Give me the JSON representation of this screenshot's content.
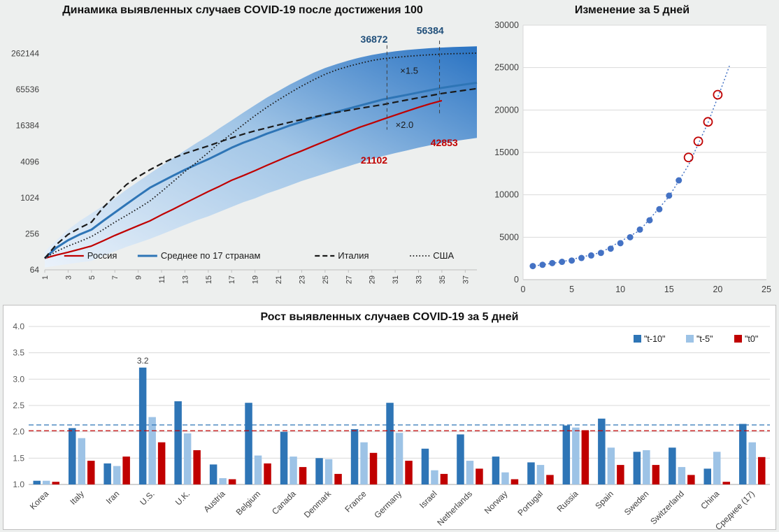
{
  "chart_data": [
    {
      "type": "line",
      "title": "Динамика выявленных случаев COVID-19 после достижения 100",
      "y_scale": "log",
      "ylim": [
        64,
        700000
      ],
      "y_ticks": [
        64,
        256,
        1024,
        4096,
        16384,
        65536,
        262144
      ],
      "xlim": [
        1,
        38
      ],
      "x_ticks": [
        1,
        3,
        5,
        7,
        9,
        11,
        13,
        15,
        17,
        19,
        21,
        23,
        25,
        27,
        29,
        31,
        33,
        35,
        37
      ],
      "series": [
        {
          "id": "russia",
          "name": "Россия",
          "color": "#C00000",
          "style": "solid",
          "width": 2.2,
          "x_start": 1,
          "values": [
            100,
            113,
            126,
            142,
            160,
            195,
            240,
            290,
            350,
            420,
            530,
            660,
            830,
            1040,
            1300,
            1600,
            2000,
            2400,
            2900,
            3550,
            4300,
            5200,
            6200,
            7500,
            9000,
            10800,
            13000,
            15500,
            18000,
            21102,
            24500,
            28500,
            33000,
            38000,
            42853
          ]
        },
        {
          "id": "avg17",
          "name": "Среднее по 17 странам",
          "color": "#2E75B6",
          "style": "solid",
          "width": 3,
          "x_start": 1,
          "values": [
            100,
            150,
            200,
            250,
            300,
            420,
            580,
            800,
            1100,
            1500,
            1900,
            2400,
            3000,
            3700,
            4500,
            5600,
            7000,
            8500,
            10000,
            12000,
            14000,
            16500,
            19000,
            22000,
            25000,
            28000,
            31500,
            35500,
            40000,
            45000,
            49000,
            53500,
            58500,
            64000,
            70000,
            75000,
            80000,
            85000
          ]
        },
        {
          "id": "italy",
          "name": "Италия",
          "color": "#1a1a1a",
          "style": "dashed",
          "width": 2.2,
          "x_start": 1,
          "values": [
            100,
            170,
            250,
            320,
            400,
            700,
            1100,
            1700,
            2300,
            3000,
            3800,
            4700,
            5600,
            6500,
            7500,
            8800,
            10200,
            11800,
            13400,
            15000,
            16800,
            18700,
            20700,
            22800,
            25000,
            27200,
            29500,
            31900,
            34300,
            36872,
            40300,
            43900,
            47700,
            51900,
            56384,
            60000,
            64000,
            68000
          ]
        },
        {
          "id": "usa",
          "name": "США",
          "color": "#1a1a1a",
          "style": "dotted",
          "width": 1.8,
          "x_start": 1,
          "values": [
            100,
            130,
            160,
            190,
            230,
            300,
            400,
            520,
            680,
            900,
            1300,
            1900,
            2800,
            4000,
            5800,
            8500,
            12000,
            17000,
            24000,
            33000,
            44000,
            58000,
            75000,
            95000,
            118000,
            140000,
            160000,
            180000,
            200000,
            215000,
            225000,
            235000,
            243000,
            250000,
            256000,
            260000,
            263000,
            266000
          ]
        }
      ],
      "band": {
        "color_from": "#eaf2fb",
        "color_to": "#1f6cc0",
        "upper": [
          130,
          200,
          300,
          420,
          560,
          750,
          1000,
          1400,
          1900,
          2600,
          3500,
          4700,
          6300,
          8400,
          11000,
          15000,
          20000,
          27000,
          36000,
          48000,
          62000,
          80000,
          100000,
          125000,
          150000,
          175000,
          200000,
          225000,
          248000,
          268000,
          285000,
          300000,
          312000,
          322000,
          330000,
          336000,
          341000,
          345000
        ],
        "lower": [
          70,
          75,
          80,
          85,
          90,
          110,
          130,
          155,
          180,
          210,
          250,
          300,
          360,
          430,
          500,
          600,
          720,
          860,
          1000,
          1200,
          1400,
          1650,
          1950,
          2250,
          2600,
          3000,
          3450,
          3950,
          4500,
          5100,
          5700,
          6300,
          7000,
          7700,
          8400,
          9000,
          9600,
          10200
        ]
      },
      "guides": [
        {
          "day": 30.3,
          "from": 360000,
          "to": 14000
        },
        {
          "day": 34.8,
          "from": 430000,
          "to": 25000
        }
      ],
      "annotations": [
        {
          "text": "36872",
          "day": 29.2,
          "value": 400000,
          "color": "#1F4E79",
          "bold": true,
          "size": 14,
          "anchor": "middle"
        },
        {
          "text": "56384",
          "day": 34.0,
          "value": 560000,
          "color": "#1F4E79",
          "bold": true,
          "size": 14,
          "anchor": "middle"
        },
        {
          "text": "×1.5",
          "day": 32.2,
          "value": 120000,
          "color": "#1a1a1a",
          "bold": false,
          "size": 13,
          "anchor": "middle"
        },
        {
          "text": "×2.0",
          "day": 31.8,
          "value": 15000,
          "color": "#1a1a1a",
          "bold": false,
          "size": 13,
          "anchor": "middle"
        },
        {
          "text": "21102",
          "day": 29.2,
          "value": 3800,
          "color": "#C00000",
          "bold": true,
          "size": 14,
          "anchor": "middle"
        },
        {
          "text": "42853",
          "day": 35.2,
          "value": 7500,
          "color": "#C00000",
          "bold": true,
          "size": 14,
          "anchor": "middle"
        }
      ]
    },
    {
      "type": "scatter",
      "title": "Изменение за 5 дней",
      "xlim": [
        0,
        25
      ],
      "ylim": [
        0,
        30000
      ],
      "x_ticks": [
        0,
        5,
        10,
        15,
        20,
        25
      ],
      "y_ticks": [
        0,
        5000,
        10000,
        15000,
        20000,
        25000,
        30000
      ],
      "series": [
        {
          "id": "observed",
          "marker": "filled",
          "color": "#4472C4",
          "points": [
            [
              1,
              1600
            ],
            [
              2,
              1750
            ],
            [
              3,
              1950
            ],
            [
              4,
              2100
            ],
            [
              5,
              2250
            ],
            [
              6,
              2550
            ],
            [
              7,
              2850
            ],
            [
              8,
              3150
            ],
            [
              9,
              3650
            ],
            [
              10,
              4300
            ],
            [
              11,
              5000
            ],
            [
              12,
              5900
            ],
            [
              13,
              7000
            ],
            [
              14,
              8300
            ],
            [
              15,
              9900
            ],
            [
              16,
              11700
            ]
          ]
        },
        {
          "id": "highlighted",
          "marker": "open",
          "color": "#C00000",
          "points": [
            [
              17,
              14400
            ],
            [
              18,
              16300
            ],
            [
              19,
              18600
            ],
            [
              20,
              21800
            ]
          ]
        }
      ],
      "trend": {
        "color": "#4472C4",
        "style": "dotted",
        "points": [
          [
            0.8,
            1550
          ],
          [
            4,
            2100
          ],
          [
            8,
            3200
          ],
          [
            12,
            5800
          ],
          [
            15,
            9800
          ],
          [
            17,
            13500
          ],
          [
            19,
            18500
          ],
          [
            20.5,
            23000
          ],
          [
            21.2,
            25200
          ]
        ]
      }
    },
    {
      "type": "bar",
      "title": "Рост выявленных случаев COVID-19 за 5 дней",
      "ylim": [
        1.0,
        4.0
      ],
      "y_ticks": [
        1.0,
        1.5,
        2.0,
        2.5,
        3.0,
        3.5,
        4.0
      ],
      "categories": [
        "Korea",
        "Italy",
        "Iran",
        "U.S.",
        "U.K.",
        "Austria",
        "Belgium",
        "Canada",
        "Denmark",
        "France",
        "Germany",
        "Israel",
        "Netherlands",
        "Norway",
        "Portugal",
        "Russia",
        "Spain",
        "Sweden",
        "Switzerland",
        "China",
        "Среднее (17)"
      ],
      "series": [
        {
          "id": "t10",
          "label": "\"t-10\"",
          "color": "#2E75B6",
          "values": [
            1.07,
            2.07,
            1.4,
            3.22,
            2.58,
            1.38,
            2.55,
            2.0,
            1.5,
            2.05,
            2.55,
            1.68,
            1.95,
            1.53,
            1.42,
            2.12,
            2.25,
            1.62,
            1.7,
            1.3,
            2.15
          ]
        },
        {
          "id": "t5",
          "label": "\"t-5\"",
          "color": "#9DC3E6",
          "values": [
            1.07,
            1.88,
            1.35,
            2.28,
            1.97,
            1.12,
            1.55,
            1.53,
            1.48,
            1.8,
            1.98,
            1.27,
            1.45,
            1.23,
            1.37,
            2.08,
            1.7,
            1.65,
            1.33,
            1.62,
            1.8
          ]
        },
        {
          "id": "t0",
          "label": "\"t0\"",
          "color": "#C00000",
          "values": [
            1.05,
            1.45,
            1.53,
            1.8,
            1.65,
            1.1,
            1.4,
            1.33,
            1.2,
            1.6,
            1.45,
            1.2,
            1.3,
            1.1,
            1.18,
            2.03,
            1.37,
            1.37,
            1.18,
            1.05,
            1.52
          ]
        }
      ],
      "ref_lines": [
        {
          "value": 2.13,
          "color": "#2E75B6"
        },
        {
          "value": 2.02,
          "color": "#C00000"
        }
      ],
      "bar_labels": [
        {
          "category_index": 3,
          "series_index": 0,
          "text": "3.2"
        }
      ]
    }
  ]
}
